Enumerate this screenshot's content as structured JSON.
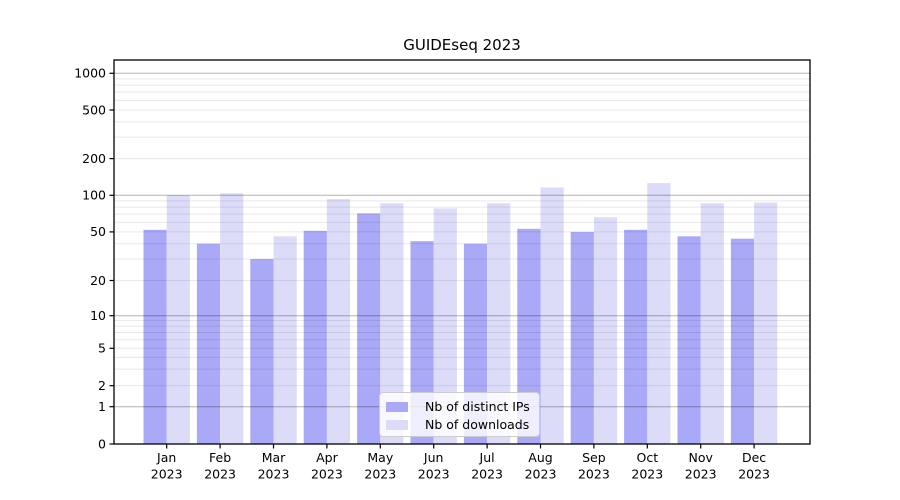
{
  "title": "GUIDEseq 2023",
  "chart_data": {
    "type": "bar",
    "title": "GUIDEseq 2023",
    "xlabel": "",
    "ylabel": "",
    "yscale": "symlog",
    "ylim": [
      0,
      1300
    ],
    "grid": true,
    "legend_position": "lower center",
    "categories": [
      "Jan 2023",
      "Feb 2023",
      "Mar 2023",
      "Apr 2023",
      "May 2023",
      "Jun 2023",
      "Jul 2023",
      "Aug 2023",
      "Sep 2023",
      "Oct 2023",
      "Nov 2023",
      "Dec 2023"
    ],
    "x_tick_line1": [
      "Jan",
      "Feb",
      "Mar",
      "Apr",
      "May",
      "Jun",
      "Jul",
      "Aug",
      "Sep",
      "Oct",
      "Nov",
      "Dec"
    ],
    "x_tick_line2": [
      "2023",
      "2023",
      "2023",
      "2023",
      "2023",
      "2023",
      "2023",
      "2023",
      "2023",
      "2023",
      "2023",
      "2023"
    ],
    "yticks": [
      1000,
      500,
      200,
      100,
      50,
      20,
      10,
      5,
      2,
      1,
      0
    ],
    "series": [
      {
        "name": "Nb of distinct IPs",
        "color": "#a9a9f7",
        "values": [
          52,
          40,
          30,
          51,
          71,
          42,
          40,
          53,
          50,
          52,
          46,
          44
        ]
      },
      {
        "name": "Nb of downloads",
        "color": "#dcdcf9",
        "values": [
          100,
          104,
          46,
          93,
          86,
          78,
          86,
          116,
          66,
          126,
          86,
          87
        ]
      }
    ]
  }
}
